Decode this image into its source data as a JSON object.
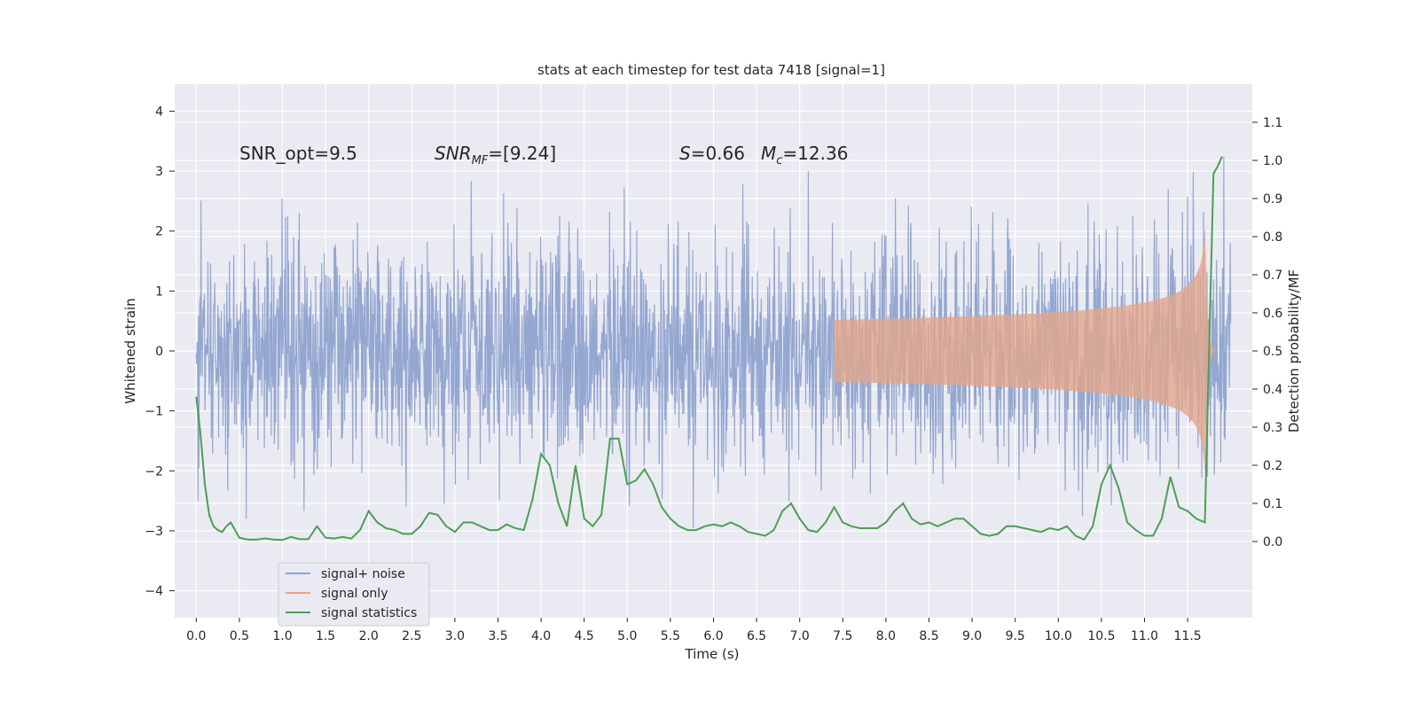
{
  "chart_data": {
    "type": "line",
    "title": "stats at each timestep for test data 7418 [signal=1]",
    "xlabel": "Time (s)",
    "ylabel_left": "Whitened strain",
    "ylabel_right": "Detection probability/MF",
    "xlim": [
      -0.25,
      12.25
    ],
    "ylim_left": [
      -4.45,
      4.45
    ],
    "ylim_right": [
      -0.2,
      1.2
    ],
    "x_ticks": [
      0.0,
      0.5,
      1.0,
      1.5,
      2.0,
      2.5,
      3.0,
      3.5,
      4.0,
      4.5,
      5.0,
      5.5,
      6.0,
      6.5,
      7.0,
      7.5,
      8.0,
      8.5,
      9.0,
      9.5,
      10.0,
      10.5,
      11.0,
      11.5
    ],
    "x_tick_labels": [
      "0.0",
      "0.5",
      "1.0",
      "1.5",
      "2.0",
      "2.5",
      "3.0",
      "3.5",
      "4.0",
      "4.5",
      "5.0",
      "5.5",
      "6.0",
      "6.5",
      "7.0",
      "7.5",
      "8.0",
      "8.5",
      "9.0",
      "9.5",
      "10.0",
      "10.5",
      "11.0",
      "11.5"
    ],
    "y_left_ticks": [
      -4,
      -3,
      -2,
      -1,
      0,
      1,
      2,
      3,
      4
    ],
    "y_left_tick_labels": [
      "−4",
      "−3",
      "−2",
      "−1",
      "0",
      "1",
      "2",
      "3",
      "4"
    ],
    "y_right_ticks": [
      0.0,
      0.1,
      0.2,
      0.3,
      0.4,
      0.5,
      0.6,
      0.7,
      0.8,
      0.9,
      1.0,
      1.1
    ],
    "y_right_tick_labels": [
      "0.0",
      "0.1",
      "0.2",
      "0.3",
      "0.4",
      "0.5",
      "0.6",
      "0.7",
      "0.8",
      "0.9",
      "1.0",
      "1.1"
    ],
    "grid": true,
    "legend_placement": "lower-left",
    "annotations": {
      "snr_opt": "SNR_opt=9.5",
      "snr_mf_main": "SNR",
      "snr_mf_sub": "MF",
      "snr_mf_rest": "=[9.24]",
      "s_sym": "S",
      "s_rest": "=0.66",
      "mc_main": "M",
      "mc_sub": "c",
      "mc_rest": "=12.36"
    },
    "series": [
      {
        "name": "signal+ noise",
        "axis": "left",
        "color": "#8fa3cf",
        "kind": "noise",
        "t_range": [
          0.0,
          12.0
        ],
        "envelope": 2.6
      },
      {
        "name": "signal only",
        "axis": "left",
        "color": "#e2a68c",
        "kind": "chirp",
        "t_start": 7.4,
        "t_merger": 11.7,
        "t_end": 11.82,
        "peak_amplitude": 2.2
      },
      {
        "name": "signal statistics",
        "axis": "right",
        "color": "#4c9e55",
        "x": [
          0.0,
          0.05,
          0.1,
          0.15,
          0.2,
          0.25,
          0.3,
          0.35,
          0.4,
          0.5,
          0.6,
          0.7,
          0.8,
          0.9,
          1.0,
          1.1,
          1.2,
          1.3,
          1.4,
          1.5,
          1.6,
          1.7,
          1.8,
          1.9,
          2.0,
          2.1,
          2.2,
          2.3,
          2.4,
          2.5,
          2.6,
          2.7,
          2.8,
          2.9,
          3.0,
          3.1,
          3.2,
          3.3,
          3.4,
          3.5,
          3.6,
          3.7,
          3.8,
          3.9,
          4.0,
          4.1,
          4.2,
          4.3,
          4.4,
          4.5,
          4.6,
          4.7,
          4.8,
          4.9,
          5.0,
          5.1,
          5.2,
          5.3,
          5.4,
          5.5,
          5.6,
          5.7,
          5.8,
          5.9,
          6.0,
          6.1,
          6.2,
          6.3,
          6.4,
          6.5,
          6.6,
          6.7,
          6.8,
          6.9,
          7.0,
          7.1,
          7.2,
          7.3,
          7.4,
          7.5,
          7.6,
          7.7,
          7.8,
          7.9,
          8.0,
          8.1,
          8.2,
          8.3,
          8.4,
          8.5,
          8.6,
          8.7,
          8.8,
          8.9,
          9.0,
          9.1,
          9.2,
          9.3,
          9.4,
          9.5,
          9.6,
          9.7,
          9.8,
          9.9,
          10.0,
          10.1,
          10.2,
          10.3,
          10.4,
          10.5,
          10.6,
          10.7,
          10.8,
          10.9,
          11.0,
          11.1,
          11.2,
          11.3,
          11.4,
          11.5,
          11.6,
          11.7,
          11.8,
          11.85,
          11.9
        ],
        "y": [
          0.38,
          0.28,
          0.15,
          0.07,
          0.04,
          0.03,
          0.025,
          0.04,
          0.05,
          0.01,
          0.005,
          0.005,
          0.008,
          0.005,
          0.004,
          0.012,
          0.006,
          0.006,
          0.04,
          0.01,
          0.008,
          0.012,
          0.008,
          0.03,
          0.08,
          0.05,
          0.035,
          0.03,
          0.02,
          0.02,
          0.04,
          0.075,
          0.07,
          0.04,
          0.025,
          0.05,
          0.05,
          0.04,
          0.03,
          0.03,
          0.045,
          0.035,
          0.03,
          0.11,
          0.23,
          0.2,
          0.1,
          0.04,
          0.2,
          0.06,
          0.04,
          0.07,
          0.27,
          0.27,
          0.15,
          0.16,
          0.19,
          0.15,
          0.09,
          0.06,
          0.04,
          0.03,
          0.03,
          0.04,
          0.045,
          0.04,
          0.05,
          0.04,
          0.025,
          0.02,
          0.015,
          0.03,
          0.08,
          0.1,
          0.06,
          0.03,
          0.025,
          0.05,
          0.09,
          0.05,
          0.04,
          0.035,
          0.035,
          0.035,
          0.05,
          0.08,
          0.1,
          0.06,
          0.045,
          0.05,
          0.04,
          0.05,
          0.06,
          0.06,
          0.04,
          0.02,
          0.015,
          0.02,
          0.04,
          0.04,
          0.035,
          0.03,
          0.025,
          0.035,
          0.03,
          0.04,
          0.015,
          0.005,
          0.04,
          0.15,
          0.2,
          0.14,
          0.05,
          0.03,
          0.015,
          0.015,
          0.06,
          0.17,
          0.09,
          0.08,
          0.06,
          0.05,
          0.965,
          0.985,
          1.01
        ]
      }
    ]
  }
}
